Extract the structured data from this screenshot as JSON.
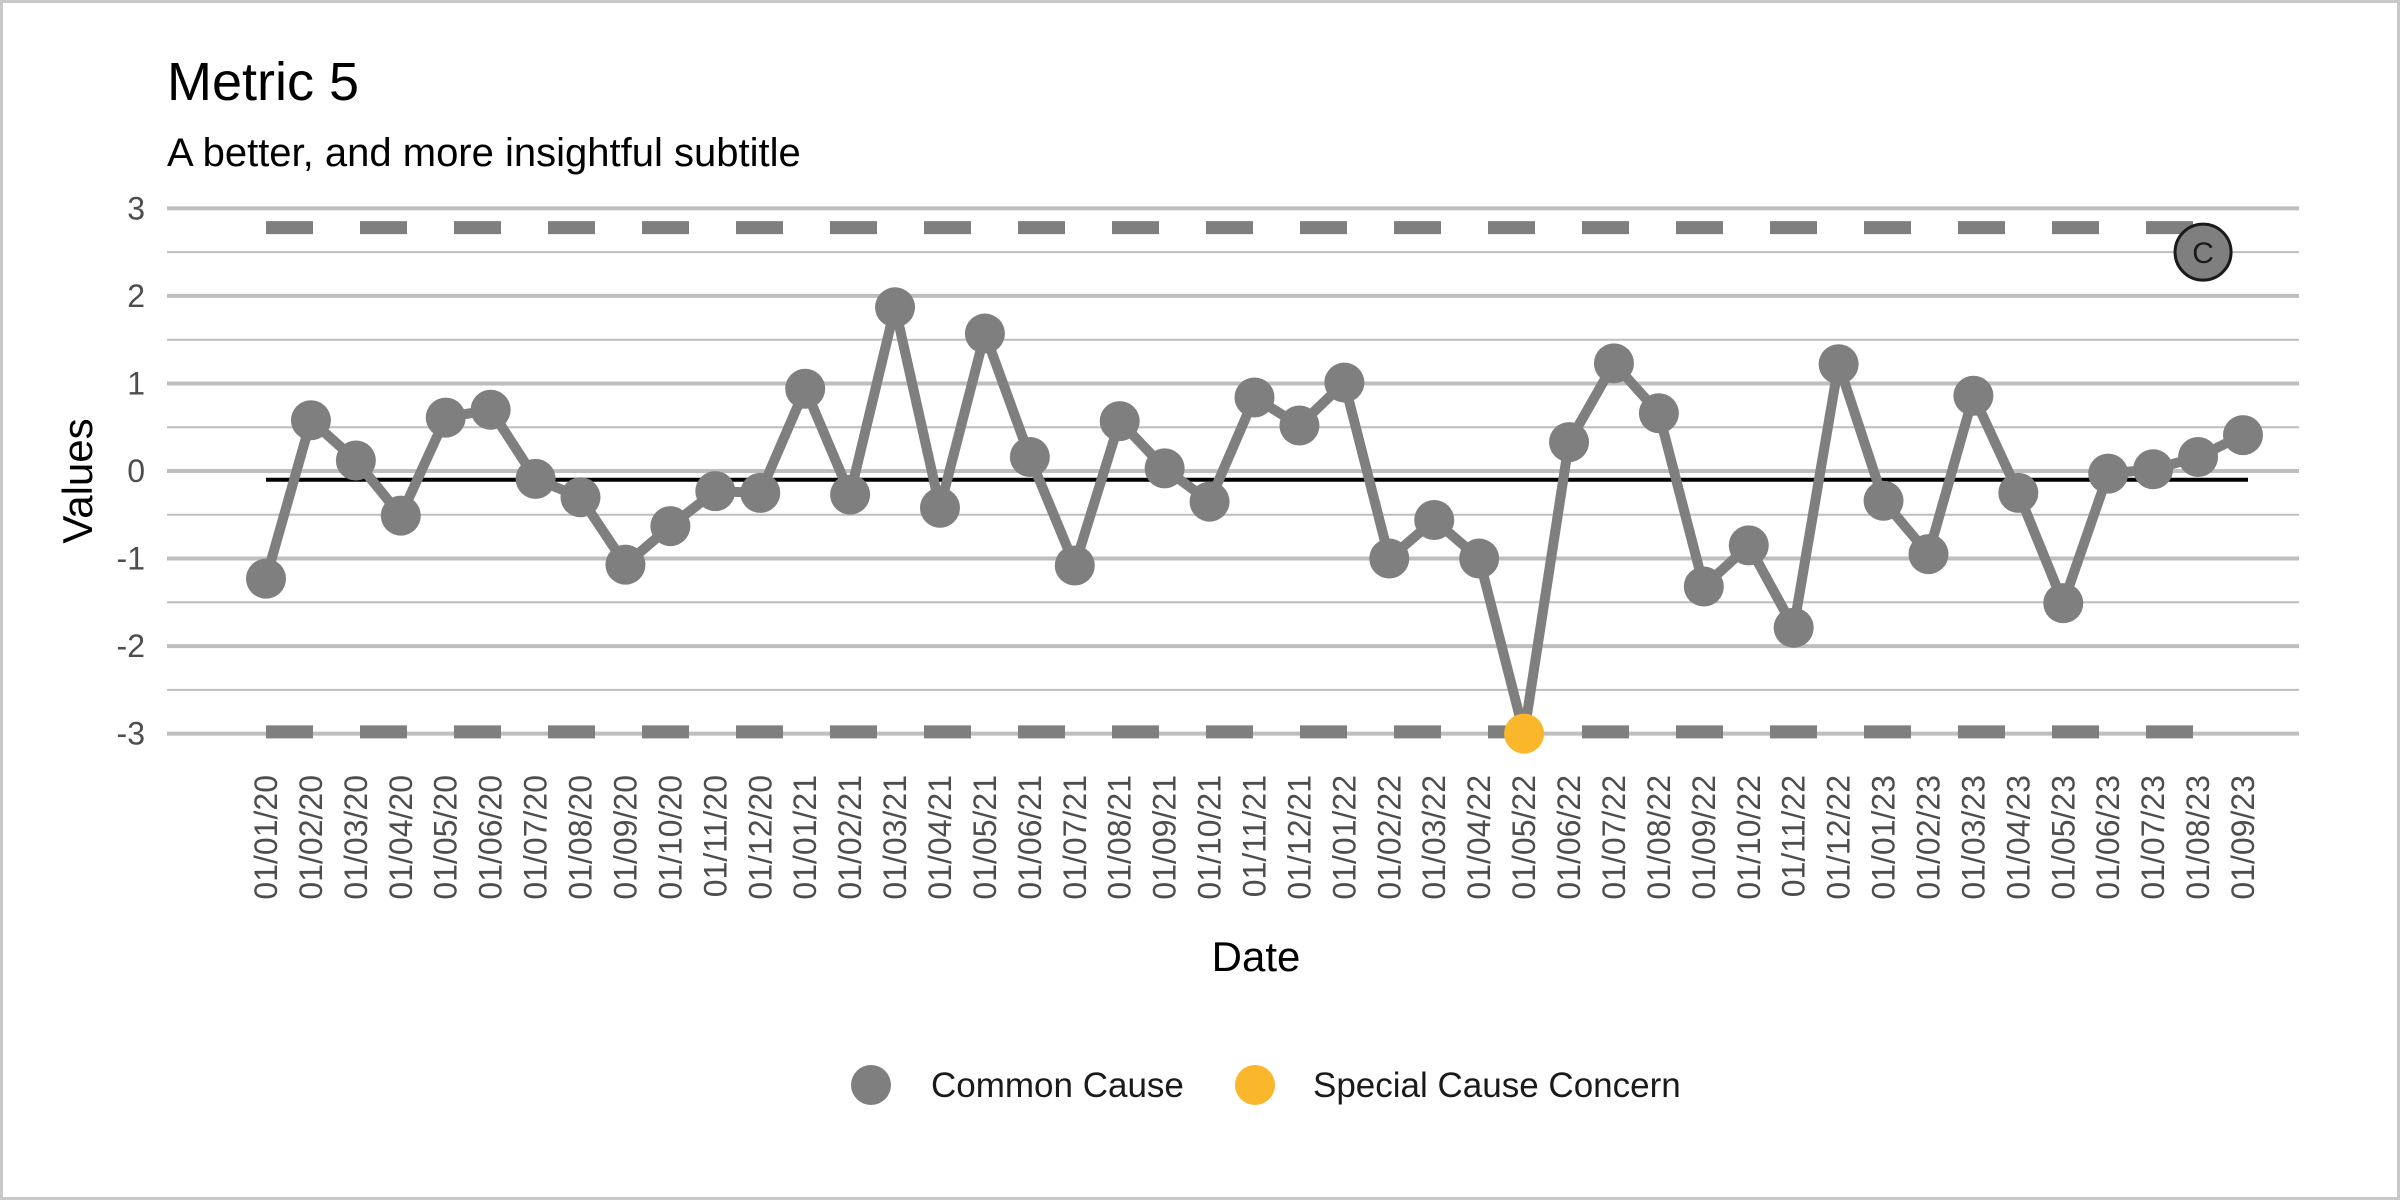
{
  "chart_data": {
    "type": "line",
    "title": "Metric 5",
    "subtitle": "A better, and more insightful subtitle",
    "xlabel": "Date",
    "ylabel": "Values",
    "ylim": [
      -3.05,
      3.05
    ],
    "yticks": [
      3,
      2,
      1,
      0,
      -1,
      -2,
      -3
    ],
    "ytick_labels": [
      "3",
      "2",
      "1",
      "0",
      "-1",
      "-2",
      "-3"
    ],
    "grid": true,
    "mean": -0.1,
    "upper_limit": 2.78,
    "lower_limit": -2.98,
    "categories": [
      "01/01/20",
      "01/02/20",
      "01/03/20",
      "01/04/20",
      "01/05/20",
      "01/06/20",
      "01/07/20",
      "01/08/20",
      "01/09/20",
      "01/10/20",
      "01/11/20",
      "01/12/20",
      "01/01/21",
      "01/02/21",
      "01/03/21",
      "01/04/21",
      "01/05/21",
      "01/06/21",
      "01/07/21",
      "01/08/21",
      "01/09/21",
      "01/10/21",
      "01/11/21",
      "01/12/21",
      "01/01/22",
      "01/02/22",
      "01/03/22",
      "01/04/22",
      "01/05/22",
      "01/06/22",
      "01/07/22",
      "01/08/22",
      "01/09/22",
      "01/10/22",
      "01/11/22",
      "01/12/22",
      "01/01/23",
      "01/02/23",
      "01/03/23",
      "01/04/23",
      "01/05/23",
      "01/06/23",
      "01/07/23",
      "01/08/23",
      "01/09/23"
    ],
    "series": [
      {
        "name": "Values",
        "values": [
          -1.23,
          0.58,
          0.12,
          -0.51,
          0.61,
          0.7,
          -0.09,
          -0.3,
          -1.07,
          -0.63,
          -0.23,
          -0.25,
          0.94,
          -0.27,
          1.87,
          -0.42,
          1.57,
          0.16,
          -1.08,
          0.57,
          0.03,
          -0.35,
          0.84,
          0.52,
          1.01,
          -1.0,
          -0.56,
          -1.0,
          -3.0,
          0.33,
          1.23,
          0.66,
          -1.32,
          -0.85,
          -1.79,
          1.22,
          -0.34,
          -0.95,
          0.86,
          -0.25,
          -1.51,
          -0.03,
          0.02,
          0.16,
          0.41
        ],
        "point_class": [
          "Common Cause",
          "Common Cause",
          "Common Cause",
          "Common Cause",
          "Common Cause",
          "Common Cause",
          "Common Cause",
          "Common Cause",
          "Common Cause",
          "Common Cause",
          "Common Cause",
          "Common Cause",
          "Common Cause",
          "Common Cause",
          "Common Cause",
          "Common Cause",
          "Common Cause",
          "Common Cause",
          "Common Cause",
          "Common Cause",
          "Common Cause",
          "Common Cause",
          "Common Cause",
          "Common Cause",
          "Common Cause",
          "Common Cause",
          "Common Cause",
          "Common Cause",
          "Special Cause Concern",
          "Common Cause",
          "Common Cause",
          "Common Cause",
          "Common Cause",
          "Common Cause",
          "Common Cause",
          "Common Cause",
          "Common Cause",
          "Common Cause",
          "Common Cause",
          "Common Cause",
          "Common Cause",
          "Common Cause",
          "Common Cause",
          "Common Cause",
          "Common Cause"
        ]
      }
    ],
    "legend": [
      {
        "label": "Common Cause",
        "color": "#7f7f7f"
      },
      {
        "label": "Special Cause Concern",
        "color": "#fbb72b"
      }
    ],
    "legend_position": "bottom",
    "annotation": {
      "label": "C",
      "x": "01/08/23",
      "y": 2.5
    },
    "colors": {
      "line": "#7f7f7f",
      "common": "#7f7f7f",
      "special": "#fbb72b",
      "mean_line": "#000000",
      "limit_line": "#7f7f7f",
      "grid": "#bebebe"
    }
  }
}
